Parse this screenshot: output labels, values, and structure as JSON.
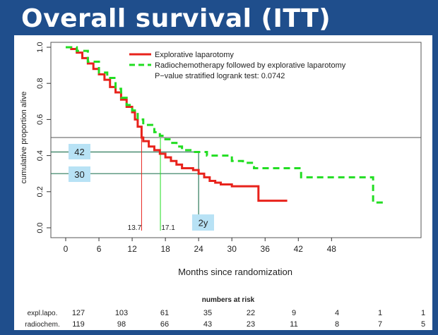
{
  "slide_title": "Overall survival (ITT)",
  "chart_data": {
    "type": "line",
    "title": "",
    "xlabel": "Months since randomization",
    "ylabel": "cumulative proportion alive",
    "xlim": [
      0,
      80
    ],
    "ylim": [
      0,
      1
    ],
    "x_ticks": [
      0,
      6,
      12,
      18,
      24,
      30,
      36,
      42,
      48
    ],
    "y_ticks": [
      "0.0",
      "0.2",
      "0.4",
      "0.6",
      "0.8",
      "1.0"
    ],
    "grid": false,
    "legend_position": "top-right",
    "series": [
      {
        "name": "Explorative laparotomy",
        "color": "#e8221b",
        "style": "solid",
        "points": [
          [
            0,
            1.0
          ],
          [
            1,
            0.99
          ],
          [
            2,
            0.97
          ],
          [
            3,
            0.94
          ],
          [
            4,
            0.91
          ],
          [
            5,
            0.88
          ],
          [
            6,
            0.85
          ],
          [
            7,
            0.82
          ],
          [
            8,
            0.78
          ],
          [
            9,
            0.75
          ],
          [
            10,
            0.71
          ],
          [
            11,
            0.67
          ],
          [
            12,
            0.64
          ],
          [
            12.5,
            0.6
          ],
          [
            13,
            0.56
          ],
          [
            13.7,
            0.5
          ],
          [
            14,
            0.48
          ],
          [
            15,
            0.45
          ],
          [
            16,
            0.43
          ],
          [
            17,
            0.41
          ],
          [
            18,
            0.39
          ],
          [
            19,
            0.37
          ],
          [
            20,
            0.35
          ],
          [
            21,
            0.33
          ],
          [
            23,
            0.32
          ],
          [
            24,
            0.3
          ],
          [
            25,
            0.28
          ],
          [
            26,
            0.26
          ],
          [
            27,
            0.25
          ],
          [
            28,
            0.24
          ],
          [
            30,
            0.23
          ],
          [
            34,
            0.23
          ],
          [
            34.8,
            0.15
          ],
          [
            40,
            0.15
          ]
        ]
      },
      {
        "name": "Radiochemotherapy followed by explorative laparotomy",
        "color": "#22dd22",
        "style": "dashed",
        "points": [
          [
            0,
            1.0
          ],
          [
            2,
            0.98
          ],
          [
            4,
            0.92
          ],
          [
            6,
            0.86
          ],
          [
            7.5,
            0.83
          ],
          [
            9,
            0.77
          ],
          [
            10,
            0.72
          ],
          [
            11,
            0.68
          ],
          [
            12,
            0.65
          ],
          [
            13,
            0.6
          ],
          [
            14,
            0.57
          ],
          [
            16,
            0.53
          ],
          [
            17,
            0.51
          ],
          [
            18,
            0.49
          ],
          [
            19,
            0.47
          ],
          [
            20,
            0.45
          ],
          [
            21,
            0.43
          ],
          [
            23,
            0.42
          ],
          [
            25,
            0.42
          ],
          [
            25.5,
            0.4
          ],
          [
            28,
            0.4
          ],
          [
            30,
            0.37
          ],
          [
            32,
            0.36
          ],
          [
            34,
            0.33
          ],
          [
            42,
            0.33
          ],
          [
            42.5,
            0.28
          ],
          [
            55,
            0.28
          ],
          [
            55.5,
            0.14
          ],
          [
            58,
            0.14
          ]
        ]
      }
    ],
    "pvalue_text": "P−value stratified logrank test: 0.0742",
    "annotations": {
      "median_red": {
        "x": 13.7,
        "label": "13.7",
        "color": "#e8221b"
      },
      "median_green": {
        "x": 17.1,
        "label": "17.1",
        "color": "#22dd22"
      },
      "median_y": 0.5,
      "level_42": {
        "y": 0.42,
        "label": "42"
      },
      "level_30": {
        "y": 0.3,
        "label": "30"
      },
      "marker_x": {
        "x": 24,
        "label": "2y"
      },
      "callout_color": "#b8e2f5",
      "reference_line_color": "#2d7a5a"
    },
    "risk_table": {
      "title": "numbers at risk",
      "rows": [
        {
          "label": "expl.lapo.",
          "values": [
            "127",
            "103",
            "61",
            "35",
            "22",
            "9",
            "4",
            "1",
            "1"
          ]
        },
        {
          "label": "radiochem.",
          "values": [
            "119",
            "98",
            "66",
            "43",
            "23",
            "11",
            "8",
            "7",
            "5"
          ]
        }
      ]
    }
  }
}
